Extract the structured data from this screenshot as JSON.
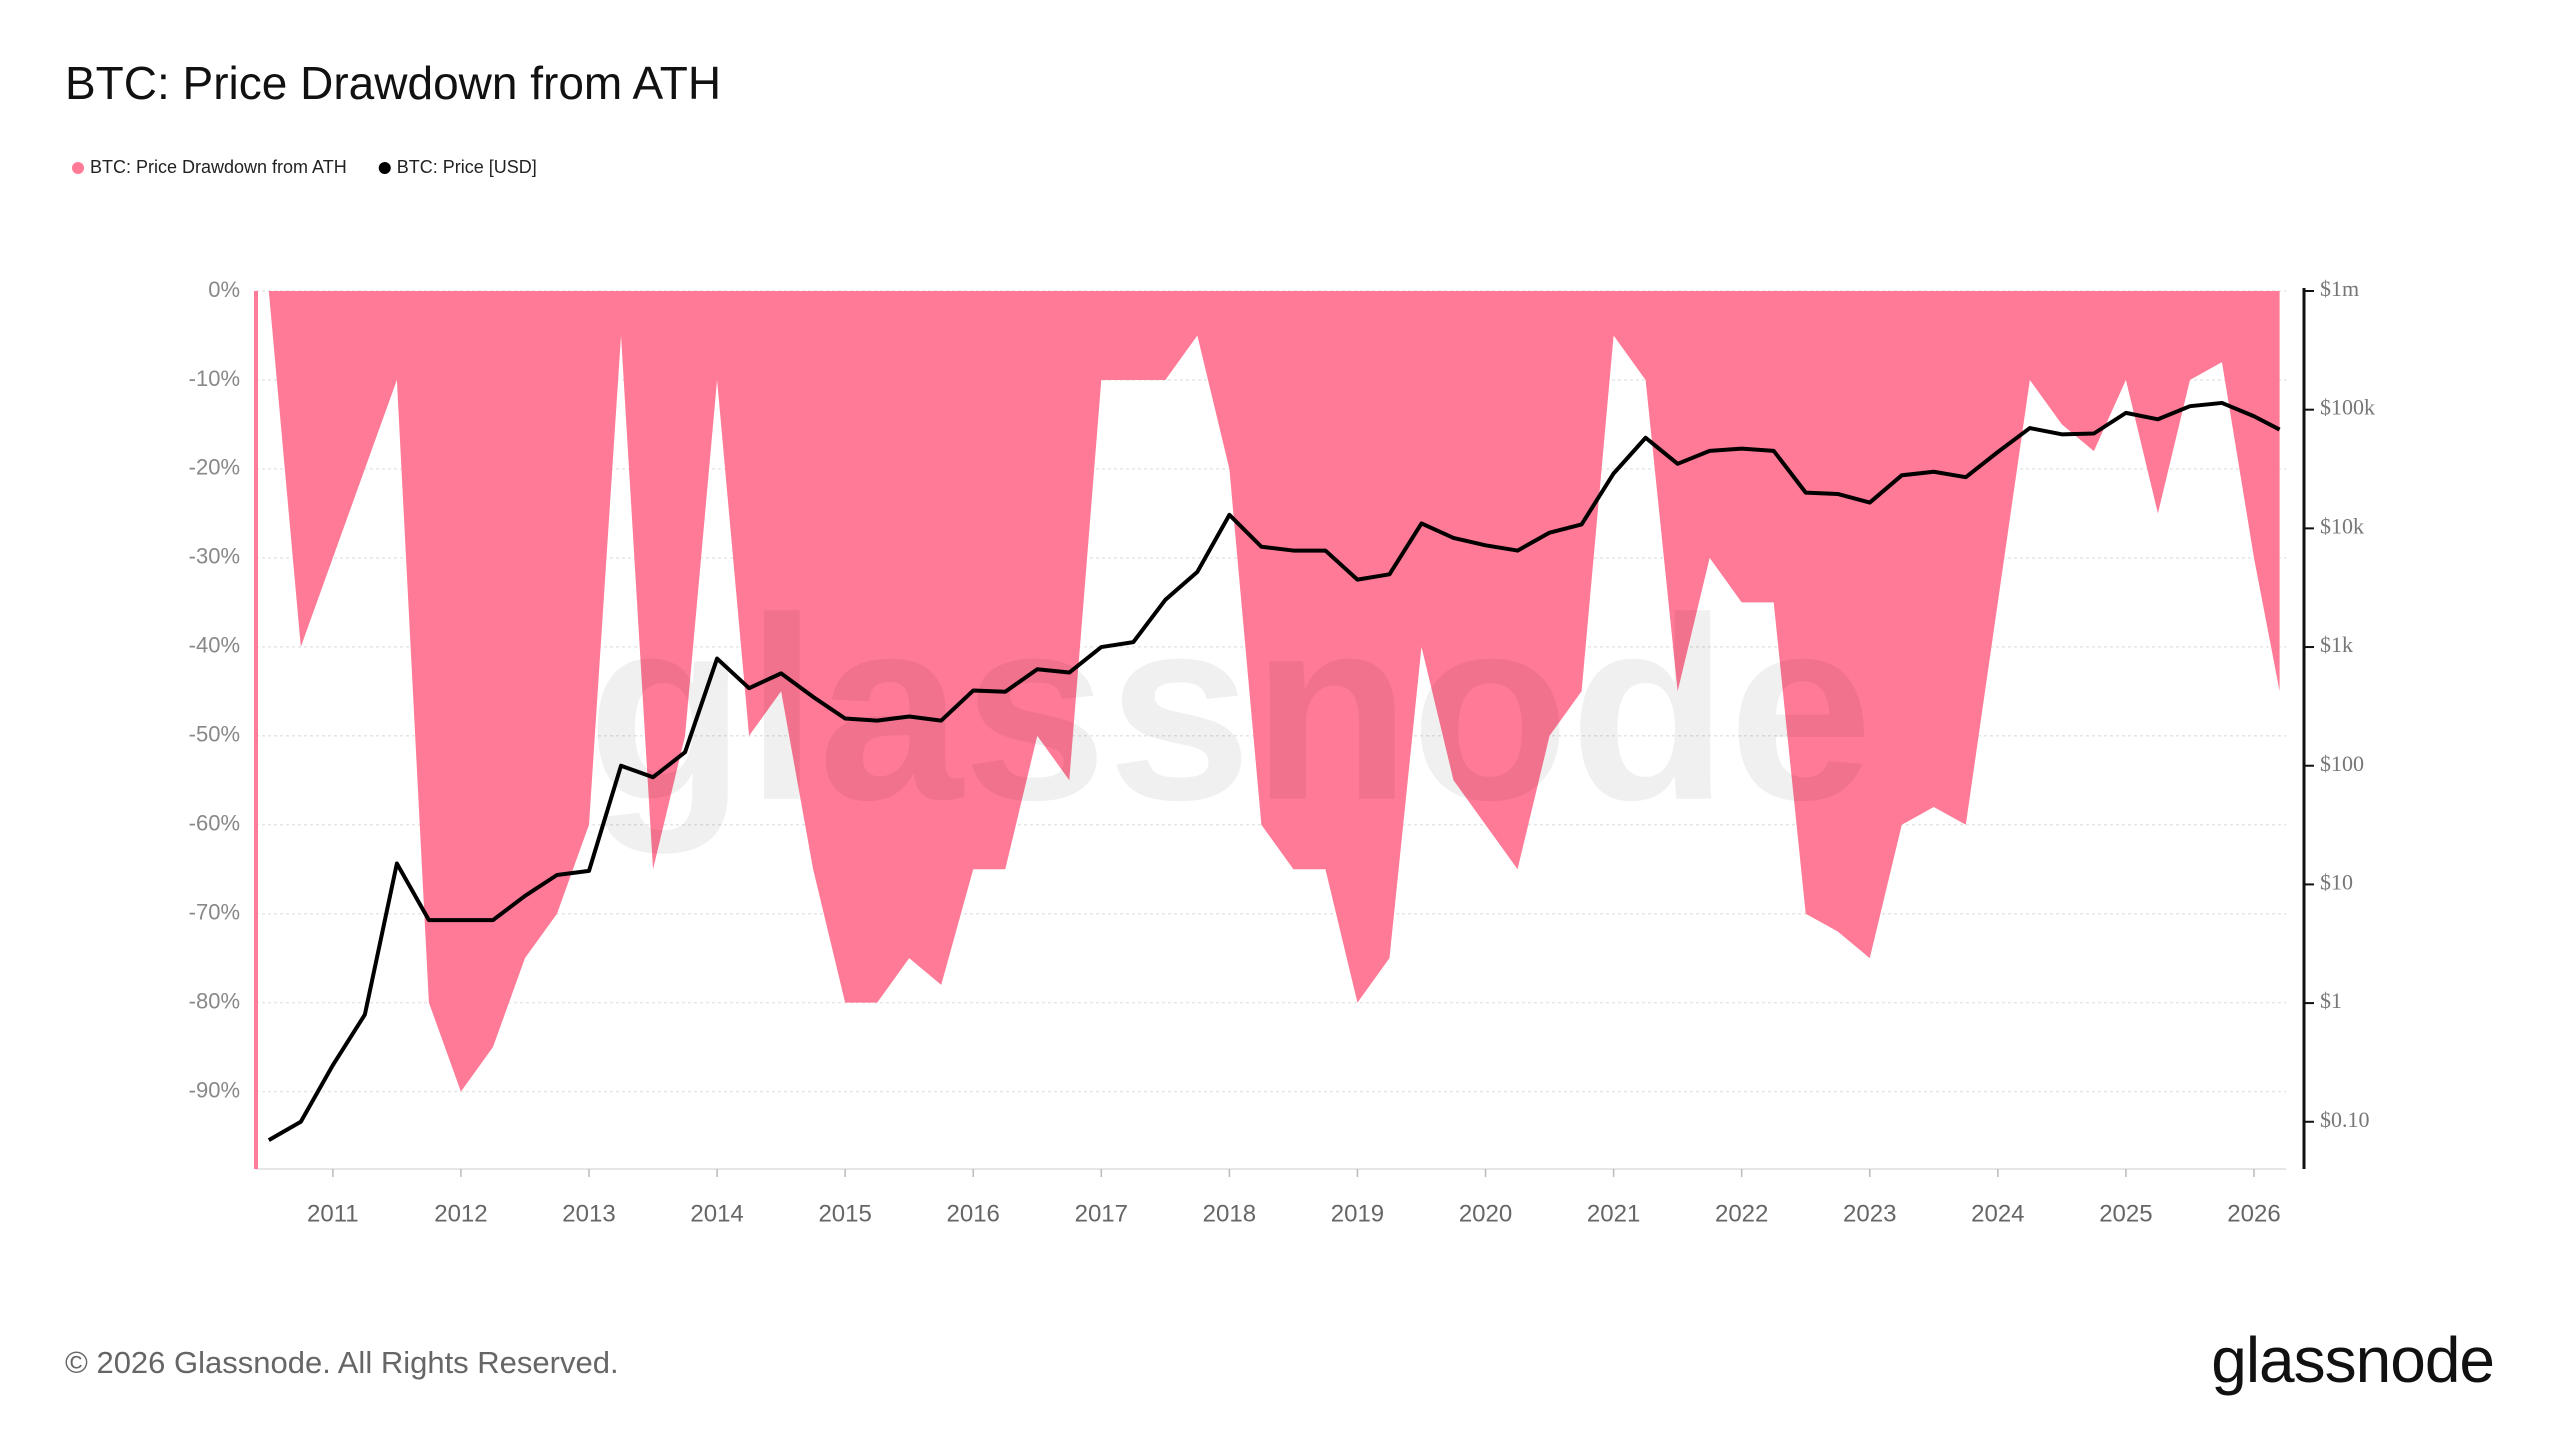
{
  "chart_data": {
    "type": "area-line",
    "title": "BTC: Price Drawdown from ATH",
    "watermark": "glassnode",
    "footer": "© 2026 Glassnode. All Rights Reserved.",
    "logo": "glassnode",
    "x": [
      2010.5,
      2010.75,
      2011,
      2011.25,
      2011.5,
      2011.75,
      2012,
      2012.25,
      2012.5,
      2012.75,
      2013,
      2013.25,
      2013.5,
      2013.75,
      2014,
      2014.25,
      2014.5,
      2014.75,
      2015,
      2015.25,
      2015.5,
      2015.75,
      2016,
      2016.25,
      2016.5,
      2016.75,
      2017,
      2017.25,
      2017.5,
      2017.75,
      2018,
      2018.25,
      2018.5,
      2018.75,
      2019,
      2019.25,
      2019.5,
      2019.75,
      2020,
      2020.25,
      2020.5,
      2020.75,
      2021,
      2021.25,
      2021.5,
      2021.75,
      2022,
      2022.25,
      2022.5,
      2022.75,
      2023,
      2023.25,
      2023.5,
      2023.75,
      2024,
      2024.25,
      2024.5,
      2024.75,
      2025,
      2025.25,
      2025.5,
      2025.75,
      2026,
      2026.2
    ],
    "series": [
      {
        "name": "BTC: Price Drawdown from ATH",
        "color": "#ff7a96",
        "axis": "y",
        "values": [
          0,
          -40,
          -30,
          -20,
          -10,
          -80,
          -90,
          -85,
          -75,
          -70,
          -60,
          -5,
          -65,
          -50,
          -10,
          -50,
          -45,
          -65,
          -80,
          -80,
          -75,
          -78,
          -65,
          -65,
          -50,
          -55,
          -10,
          -10,
          -10,
          -5,
          -20,
          -60,
          -65,
          -65,
          -80,
          -75,
          -40,
          -55,
          -60,
          -65,
          -50,
          -45,
          -5,
          -10,
          -45,
          -30,
          -35,
          -35,
          -70,
          -72,
          -75,
          -60,
          -58,
          -60,
          -35,
          -10,
          -15,
          -18,
          -10,
          -25,
          -10,
          -8,
          -30,
          -45
        ]
      },
      {
        "name": "BTC: Price [USD]",
        "color": "#000000",
        "axis": "y2",
        "values": [
          0.07,
          0.1,
          0.3,
          0.8,
          15,
          5,
          5,
          5,
          8,
          12,
          13,
          100,
          80,
          130,
          800,
          450,
          600,
          380,
          250,
          240,
          260,
          240,
          430,
          420,
          650,
          610,
          1000,
          1100,
          2500,
          4300,
          13000,
          7000,
          6500,
          6500,
          3700,
          4100,
          11000,
          8300,
          7200,
          6500,
          9200,
          10800,
          29000,
          58000,
          35000,
          45000,
          47000,
          45000,
          20000,
          19500,
          16500,
          28000,
          30000,
          27000,
          44000,
          70000,
          62000,
          63000,
          94000,
          83000,
          107000,
          114000,
          88000,
          68000
        ]
      }
    ],
    "xlim": [
      2010.4,
      2026.25
    ],
    "xticks": [
      2011,
      2012,
      2013,
      2014,
      2015,
      2016,
      2017,
      2018,
      2019,
      2020,
      2021,
      2022,
      2023,
      2024,
      2025,
      2026
    ],
    "ylim": [
      -98.7,
      0
    ],
    "yticks": [
      {
        "value": 0,
        "label": "0%"
      },
      {
        "value": -10,
        "label": "-10%"
      },
      {
        "value": -20,
        "label": "-20%"
      },
      {
        "value": -30,
        "label": "-30%"
      },
      {
        "value": -40,
        "label": "-40%"
      },
      {
        "value": -50,
        "label": "-50%"
      },
      {
        "value": -60,
        "label": "-60%"
      },
      {
        "value": -70,
        "label": "-70%"
      },
      {
        "value": -80,
        "label": "-80%"
      },
      {
        "value": -90,
        "label": "-90%"
      }
    ],
    "y2lim": [
      0.04,
      1000000
    ],
    "y2log": true,
    "y2ticks": [
      {
        "value": 0.1,
        "label": "$0.10"
      },
      {
        "value": 1,
        "label": "$1"
      },
      {
        "value": 10,
        "label": "$10"
      },
      {
        "value": 100,
        "label": "$100"
      },
      {
        "value": 1000,
        "label": "$1k"
      },
      {
        "value": 10000,
        "label": "$10k"
      },
      {
        "value": 100000,
        "label": "$100k"
      },
      {
        "value": 1000000,
        "label": "$1m"
      }
    ],
    "grid": true
  }
}
